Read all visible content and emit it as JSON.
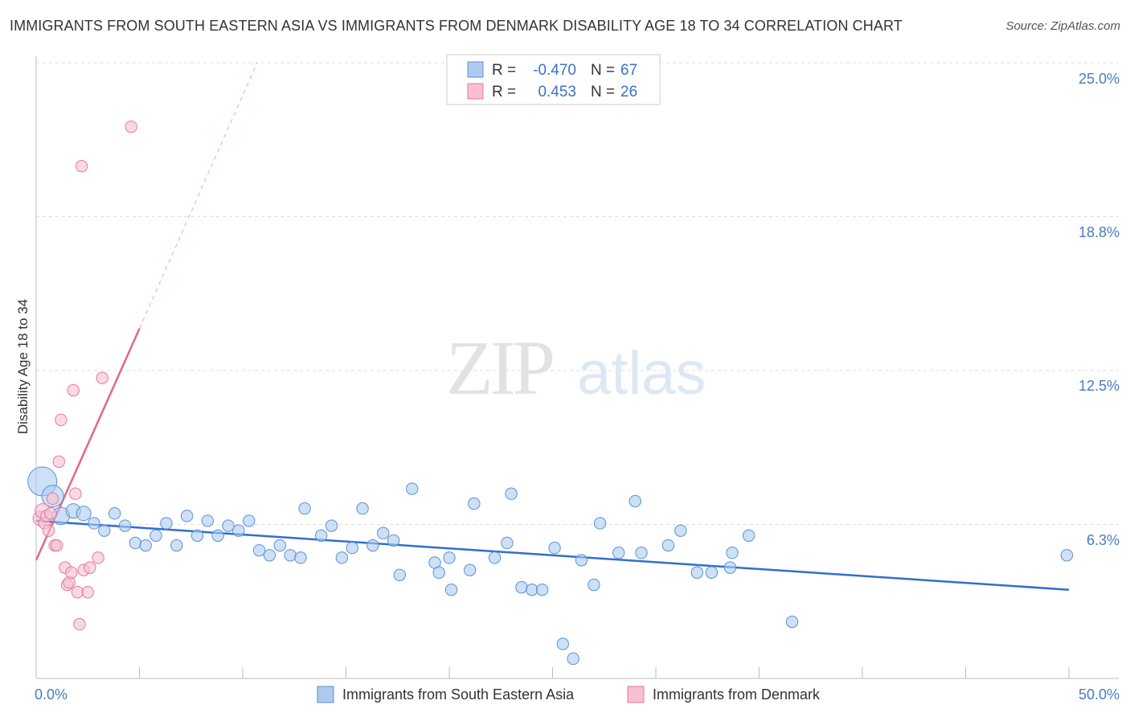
{
  "title": "IMMIGRANTS FROM SOUTH EASTERN ASIA VS IMMIGRANTS FROM DENMARK DISABILITY AGE 18 TO 34 CORRELATION CHART",
  "source": "Source: ZipAtlas.com",
  "watermark": {
    "zip": "ZIP",
    "atlas": "atlas"
  },
  "colors": {
    "blue_fill": "#aecbef",
    "blue_stroke": "#5b8fd6",
    "blue_line": "#2f6fcf",
    "pink_fill": "#f7c0d1",
    "pink_stroke": "#e6789c",
    "pink_line": "#e2668f",
    "grid": "#dddddd",
    "tick_text": "#4a7cc2"
  },
  "legend": {
    "rows": [
      {
        "r_label": "R =",
        "r_value": "-0.470",
        "n_label": "N =",
        "n_value": "67"
      },
      {
        "r_label": "R =",
        "r_value": "0.453",
        "n_label": "N =",
        "n_value": "26"
      }
    ]
  },
  "chart_data": {
    "type": "scatter",
    "title": "IMMIGRANTS FROM SOUTH EASTERN ASIA VS IMMIGRANTS FROM DENMARK DISABILITY AGE 18 TO 34 CORRELATION CHART",
    "xlabel": "",
    "ylabel": "Disability Age 18 to 34",
    "xlim": [
      0,
      50
    ],
    "ylim": [
      0,
      25
    ],
    "x_tick_labels": [
      "0.0%",
      "50.0%"
    ],
    "y_ticks": [
      6.25,
      12.5,
      18.75,
      25.0
    ],
    "y_tick_labels": [
      "6.3%",
      "12.5%",
      "18.8%",
      "25.0%"
    ],
    "legend_position": "top-center",
    "series": [
      {
        "name": "Immigrants from South Eastern Asia",
        "color": "blue",
        "R": -0.47,
        "N": 67,
        "trend": {
          "x0": 0.0,
          "y0": 6.4,
          "x1": 50.0,
          "y1": 3.6
        },
        "points": [
          [
            0.3,
            8.0,
            2
          ],
          [
            0.8,
            7.4,
            1.5
          ],
          [
            1.2,
            6.6,
            1.2
          ],
          [
            1.8,
            6.8,
            1
          ],
          [
            2.3,
            6.7,
            1
          ],
          [
            2.8,
            6.3,
            0.8
          ],
          [
            3.3,
            6.0,
            0.8
          ],
          [
            3.8,
            6.7,
            0.8
          ],
          [
            4.3,
            6.2,
            0.8
          ],
          [
            4.8,
            5.5,
            0.8
          ],
          [
            5.3,
            5.4,
            0.8
          ],
          [
            5.8,
            5.8,
            0.8
          ],
          [
            6.3,
            6.3,
            0.8
          ],
          [
            6.8,
            5.4,
            0.8
          ],
          [
            7.3,
            6.6,
            0.8
          ],
          [
            7.8,
            5.8,
            0.8
          ],
          [
            8.3,
            6.4,
            0.8
          ],
          [
            8.8,
            5.8,
            0.8
          ],
          [
            9.3,
            6.2,
            0.8
          ],
          [
            9.8,
            6.0,
            0.8
          ],
          [
            10.3,
            6.4,
            0.8
          ],
          [
            10.8,
            5.2,
            0.8
          ],
          [
            11.3,
            5.0,
            0.8
          ],
          [
            11.8,
            5.4,
            0.8
          ],
          [
            12.3,
            5.0,
            0.8
          ],
          [
            12.8,
            4.9,
            0.8
          ],
          [
            13.0,
            6.9,
            0.8
          ],
          [
            13.8,
            5.8,
            0.8
          ],
          [
            14.3,
            6.2,
            0.8
          ],
          [
            14.8,
            4.9,
            0.8
          ],
          [
            15.3,
            5.3,
            0.8
          ],
          [
            15.8,
            6.9,
            0.8
          ],
          [
            16.3,
            5.4,
            0.8
          ],
          [
            16.8,
            5.9,
            0.8
          ],
          [
            17.3,
            5.6,
            0.8
          ],
          [
            17.6,
            4.2,
            0.8
          ],
          [
            18.2,
            7.7,
            0.8
          ],
          [
            19.3,
            4.7,
            0.8
          ],
          [
            19.5,
            4.3,
            0.8
          ],
          [
            20.0,
            4.9,
            0.8
          ],
          [
            20.1,
            3.6,
            0.8
          ],
          [
            21.0,
            4.4,
            0.8
          ],
          [
            21.2,
            7.1,
            0.8
          ],
          [
            22.2,
            4.9,
            0.8
          ],
          [
            22.8,
            5.5,
            0.8
          ],
          [
            23.5,
            3.7,
            0.8
          ],
          [
            24.0,
            3.6,
            0.8
          ],
          [
            24.5,
            3.6,
            0.8
          ],
          [
            25.1,
            5.3,
            0.8
          ],
          [
            25.5,
            1.4,
            0.8
          ],
          [
            26.4,
            4.8,
            0.8
          ],
          [
            27.0,
            3.8,
            0.8
          ],
          [
            27.3,
            6.3,
            0.8
          ],
          [
            28.2,
            5.1,
            0.8
          ],
          [
            29.0,
            7.2,
            0.8
          ],
          [
            29.3,
            5.1,
            0.8
          ],
          [
            30.6,
            5.4,
            0.8
          ],
          [
            31.2,
            6.0,
            0.8
          ],
          [
            32.0,
            4.3,
            0.8
          ],
          [
            32.7,
            4.3,
            0.8
          ],
          [
            33.6,
            4.5,
            0.8
          ],
          [
            33.7,
            5.1,
            0.8
          ],
          [
            34.5,
            5.8,
            0.8
          ],
          [
            36.6,
            2.3,
            0.8
          ],
          [
            23.0,
            7.5,
            0.8
          ],
          [
            49.9,
            5.0,
            0.8
          ],
          [
            26.0,
            0.8,
            0.8
          ]
        ]
      },
      {
        "name": "Immigrants from Denmark",
        "color": "pink",
        "R": 0.453,
        "N": 26,
        "trend": {
          "x0": 0.0,
          "y0": 4.8,
          "x1": 5.0,
          "y1": 14.2
        },
        "trend_extension": {
          "x0": 5.0,
          "y0": 14.2,
          "x1": 10.7,
          "y1": 25.0
        },
        "points": [
          [
            0.2,
            6.5,
            1
          ],
          [
            0.3,
            6.8,
            1
          ],
          [
            0.4,
            6.3,
            0.8
          ],
          [
            0.5,
            6.6,
            0.8
          ],
          [
            0.6,
            6.0,
            0.8
          ],
          [
            0.7,
            6.7,
            0.8
          ],
          [
            0.8,
            7.3,
            0.8
          ],
          [
            0.9,
            5.4,
            0.8
          ],
          [
            1.0,
            5.4,
            0.8
          ],
          [
            1.1,
            8.8,
            0.8
          ],
          [
            1.2,
            10.5,
            0.8
          ],
          [
            1.4,
            4.5,
            0.8
          ],
          [
            1.5,
            3.8,
            0.8
          ],
          [
            1.6,
            3.9,
            0.8
          ],
          [
            1.7,
            4.3,
            0.8
          ],
          [
            1.8,
            11.7,
            0.8
          ],
          [
            1.9,
            7.5,
            0.8
          ],
          [
            2.0,
            3.5,
            0.8
          ],
          [
            2.1,
            2.2,
            0.8
          ],
          [
            2.2,
            20.8,
            0.8
          ],
          [
            2.3,
            4.4,
            0.8
          ],
          [
            2.5,
            3.5,
            0.8
          ],
          [
            2.6,
            4.5,
            0.8
          ],
          [
            3.0,
            4.9,
            0.8
          ],
          [
            3.2,
            12.2,
            0.8
          ],
          [
            4.6,
            22.4,
            0.8
          ]
        ]
      }
    ]
  }
}
